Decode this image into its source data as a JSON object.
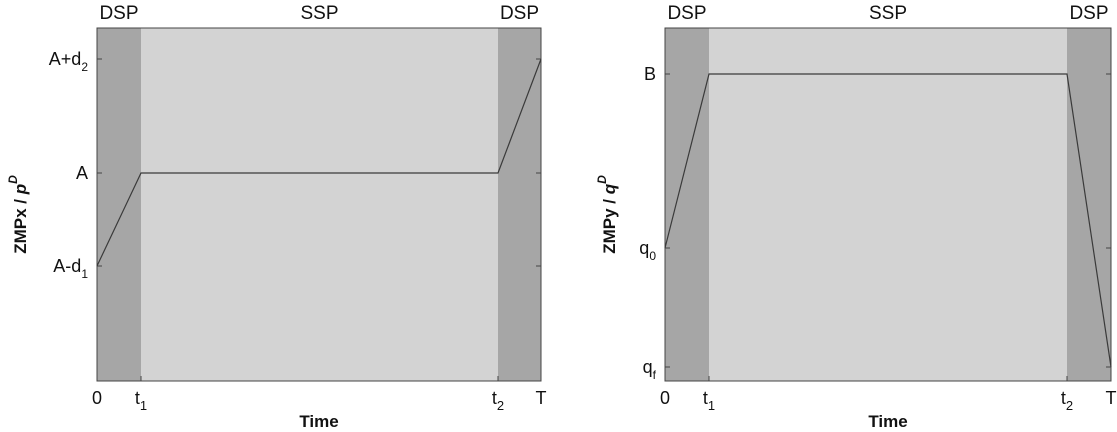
{
  "colors": {
    "dsp_fill": "#a6a6a6",
    "ssp_fill": "#d3d3d3",
    "line": "#3a3a3a",
    "frame": "#444444"
  },
  "chart_data": [
    {
      "type": "line",
      "phases": [
        {
          "label": "DSP",
          "x_start": "0",
          "x_end": "t1"
        },
        {
          "label": "SSP",
          "x_start": "t1",
          "x_end": "t2"
        },
        {
          "label": "DSP",
          "x_start": "t2",
          "x_end": "T"
        }
      ],
      "xlabel": "Time",
      "ylabel": {
        "text": "ZMPx / ",
        "sym": "p",
        "sup": "D"
      },
      "x_ticks": [
        {
          "key": "0",
          "text": "0",
          "sub": ""
        },
        {
          "key": "t1",
          "text": "t",
          "sub": "1"
        },
        {
          "key": "t2",
          "text": "t",
          "sub": "2"
        },
        {
          "key": "T",
          "text": "T",
          "sub": ""
        }
      ],
      "y_ticks": [
        {
          "key": "A+d2",
          "text": "A+d",
          "sub": "2"
        },
        {
          "key": "A",
          "text": "A",
          "sub": ""
        },
        {
          "key": "A-d1",
          "text": "A-d",
          "sub": "1"
        }
      ],
      "series": [
        {
          "points": [
            [
              "0",
              "A-d1"
            ],
            [
              "t1",
              "A"
            ],
            [
              "t2",
              "A"
            ],
            [
              "T",
              "A+d2"
            ]
          ]
        }
      ]
    },
    {
      "type": "line",
      "phases": [
        {
          "label": "DSP",
          "x_start": "0",
          "x_end": "t1"
        },
        {
          "label": "SSP",
          "x_start": "t1",
          "x_end": "t2"
        },
        {
          "label": "DSP",
          "x_start": "t2",
          "x_end": "T"
        }
      ],
      "xlabel": "Time",
      "ylabel": {
        "text": "ZMPy / ",
        "sym": "q",
        "sup": "D"
      },
      "x_ticks": [
        {
          "key": "0",
          "text": "0",
          "sub": ""
        },
        {
          "key": "t1",
          "text": "t",
          "sub": "1"
        },
        {
          "key": "t2",
          "text": "t",
          "sub": "2"
        },
        {
          "key": "T",
          "text": "T",
          "sub": ""
        }
      ],
      "y_ticks": [
        {
          "key": "B",
          "text": "B",
          "sub": ""
        },
        {
          "key": "q0",
          "text": "q",
          "sub": "0"
        },
        {
          "key": "qf",
          "text": "q",
          "sub": "f"
        }
      ],
      "series": [
        {
          "points": [
            [
              "0",
              "q0"
            ],
            [
              "t1",
              "B"
            ],
            [
              "t2",
              "B"
            ],
            [
              "T",
              "qf"
            ]
          ]
        }
      ]
    }
  ]
}
